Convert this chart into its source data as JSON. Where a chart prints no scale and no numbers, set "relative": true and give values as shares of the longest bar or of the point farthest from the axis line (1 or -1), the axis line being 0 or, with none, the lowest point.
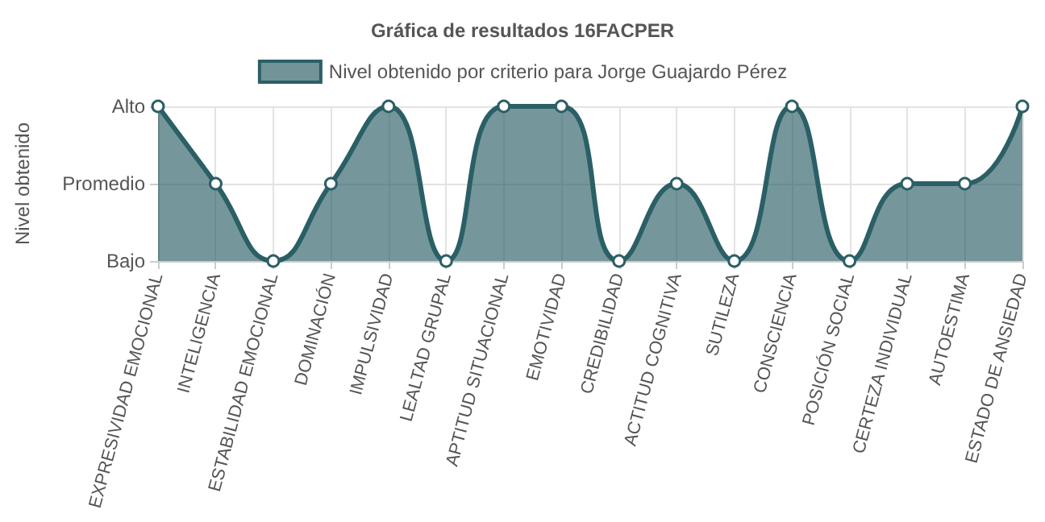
{
  "chart_data": {
    "type": "area",
    "title": "Gráfica de resultados 16FACPER",
    "ylabel": "Nivel obtenido",
    "categories": [
      "EXPRESIVIDAD EMOCIONAL",
      "INTELIGENCIA",
      "ESTABILIDAD EMOCIONAL",
      "DOMINACIÓN",
      "IMPULSIVIDAD",
      "LEALTAD GRUPAL",
      "APTITUD SITUACIONAL",
      "EMOTIVIDAD",
      "CREDIBILIDAD",
      "ACTITUD COGNITIVA",
      "SUTILEZA",
      "CONSCIENCIA",
      "POSICIÓN SOCIAL",
      "CERTEZA INDIVIDUAL",
      "AUTOESTIMA",
      "ESTADO DE ANSIEDAD"
    ],
    "series": [
      {
        "name": "Nivel obtenido por criterio para Jorge Guajardo Pérez",
        "color": "#2b5f66",
        "values": [
          1,
          0.5,
          0,
          0.5,
          1,
          0,
          1,
          1,
          0,
          0.5,
          0,
          1,
          0,
          0.5,
          0.5,
          1
        ]
      }
    ],
    "relative": true,
    "annotations": [
      "Bajo",
      "Promedio",
      "Alto"
    ],
    "grid": true,
    "legend": "top",
    "marker": "circle",
    "line_style": "solid"
  }
}
